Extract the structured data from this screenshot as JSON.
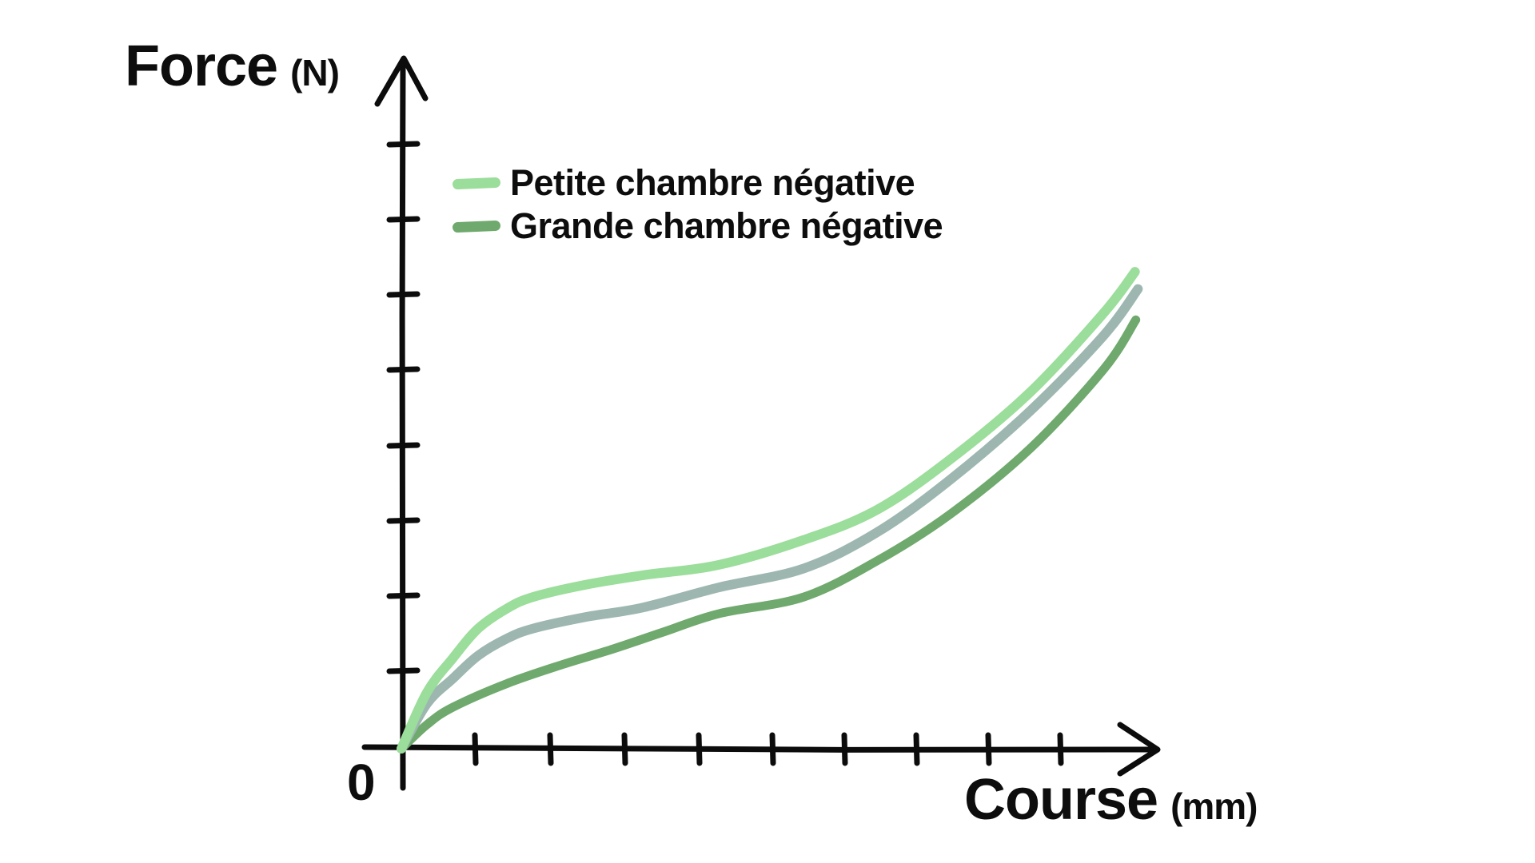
{
  "page": {
    "background": "#ffffff",
    "text_color": "#0d0d0d"
  },
  "y_axis": {
    "label": "Force",
    "unit": "(N)"
  },
  "x_axis": {
    "label": "Course",
    "unit": "(mm)"
  },
  "origin": {
    "label": "0"
  },
  "legend": {
    "position": "top-left-inside-plot",
    "items": [
      {
        "label": "Petite chambre négative",
        "color": "#9bdd9a"
      },
      {
        "label": "Grande chambre négative",
        "color": "#6fa96d"
      }
    ]
  },
  "chart_data": {
    "type": "line",
    "title": "",
    "xlabel": "Course (mm)",
    "ylabel": "Force (N)",
    "style": "hand-drawn sketch, no grid, unlabeled ticks",
    "axes_color": "#0c0c0c",
    "x_ticks_count": 9,
    "y_ticks_count": 8,
    "axis_numbers_shown": [
      "0"
    ],
    "xlim_tick_units": [
      0,
      10.2
    ],
    "ylim_tick_units": [
      0,
      9
    ],
    "points_units": "axis tick spacings (origin = 0,0)",
    "series": [
      {
        "name": "Grande chambre négative",
        "in_legend": true,
        "color": "#6fa96d",
        "width": 11,
        "points": [
          [
            0,
            0
          ],
          [
            0.35,
            0.32
          ],
          [
            0.7,
            0.55
          ],
          [
            1.45,
            0.87
          ],
          [
            2.2,
            1.12
          ],
          [
            2.9,
            1.33
          ],
          [
            3.6,
            1.56
          ],
          [
            4.35,
            1.8
          ],
          [
            5.5,
            2.02
          ],
          [
            6.5,
            2.5
          ],
          [
            7.5,
            3.12
          ],
          [
            8.6,
            4.0
          ],
          [
            9.6,
            5.05
          ],
          [
            10.04,
            5.71
          ]
        ]
      },
      {
        "name": "",
        "in_legend": false,
        "color": "#9db7b0",
        "width": 12,
        "points": [
          [
            0,
            0
          ],
          [
            0.35,
            0.6
          ],
          [
            0.7,
            0.93
          ],
          [
            1.05,
            1.24
          ],
          [
            1.45,
            1.47
          ],
          [
            1.8,
            1.6
          ],
          [
            2.5,
            1.75
          ],
          [
            3.3,
            1.88
          ],
          [
            4.35,
            2.15
          ],
          [
            5.5,
            2.4
          ],
          [
            6.5,
            2.88
          ],
          [
            7.5,
            3.58
          ],
          [
            8.6,
            4.5
          ],
          [
            9.6,
            5.5
          ],
          [
            10.07,
            6.12
          ]
        ]
      },
      {
        "name": "Petite chambre négative",
        "in_legend": true,
        "color": "#9bdd9a",
        "width": 12,
        "points": [
          [
            0,
            0
          ],
          [
            0.35,
            0.75
          ],
          [
            0.7,
            1.2
          ],
          [
            1.05,
            1.6
          ],
          [
            1.45,
            1.87
          ],
          [
            1.8,
            2.02
          ],
          [
            2.5,
            2.18
          ],
          [
            3.3,
            2.31
          ],
          [
            4.35,
            2.45
          ],
          [
            5.5,
            2.78
          ],
          [
            6.5,
            3.18
          ],
          [
            7.5,
            3.85
          ],
          [
            8.6,
            4.75
          ],
          [
            9.6,
            5.8
          ],
          [
            10.03,
            6.35
          ]
        ]
      }
    ]
  }
}
